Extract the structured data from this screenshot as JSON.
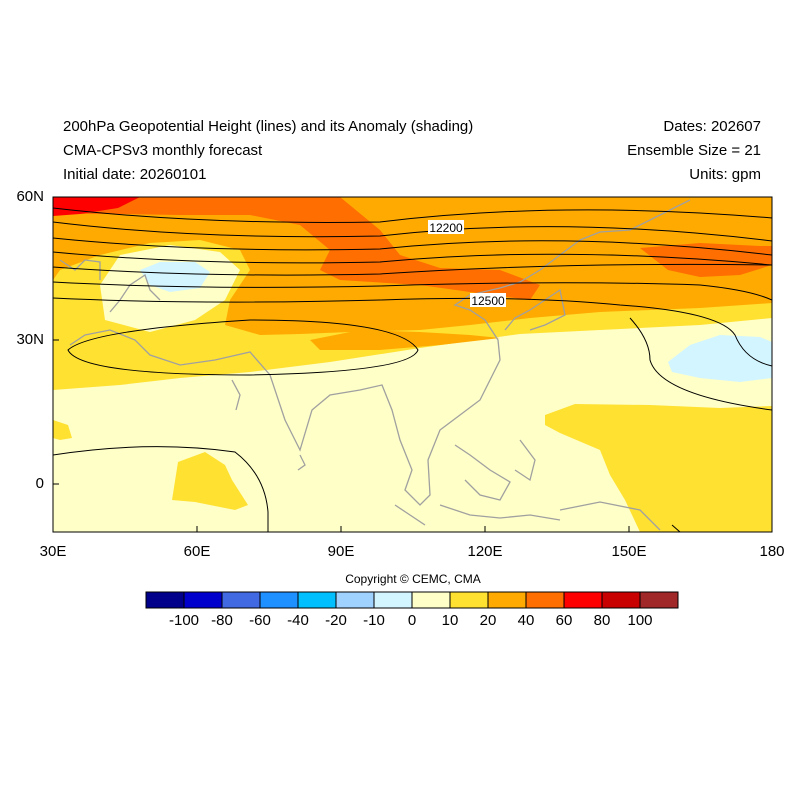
{
  "header": {
    "title_line1": "200hPa Geopotential Height (lines) and its Anomaly (shading)",
    "title_line2": "CMA-CPSv3 monthly forecast",
    "title_line3": "Initial date: 20260101",
    "dates": "Dates: 202607",
    "ensemble": "Ensemble Size = 21",
    "units": "Units: gpm"
  },
  "map": {
    "lat_labels": [
      "60N",
      "30N",
      "0"
    ],
    "lon_labels": [
      "30E",
      "60E",
      "90E",
      "120E",
      "150E",
      "180"
    ],
    "contour_labels": [
      "12200",
      "12500"
    ],
    "extent": {
      "lon": [
        30,
        180
      ],
      "lat": [
        -10,
        60
      ]
    }
  },
  "colorbar": {
    "copyright": "Copyright © CEMC, CMA",
    "labels": [
      "-100",
      "-80",
      "-60",
      "-40",
      "-20",
      "-10",
      "0",
      "10",
      "20",
      "40",
      "60",
      "80",
      "100"
    ],
    "colors": [
      "#00008b",
      "#0000cd",
      "#4169e1",
      "#1e90ff",
      "#00bfff",
      "#a0d2ff",
      "#d2f5ff",
      "#ffffc8",
      "#ffe132",
      "#ffaa00",
      "#ff6e00",
      "#ff0000",
      "#c80000",
      "#a02828"
    ]
  },
  "colors": {
    "coastline": "#a0a0a0",
    "contour": "#000000"
  }
}
